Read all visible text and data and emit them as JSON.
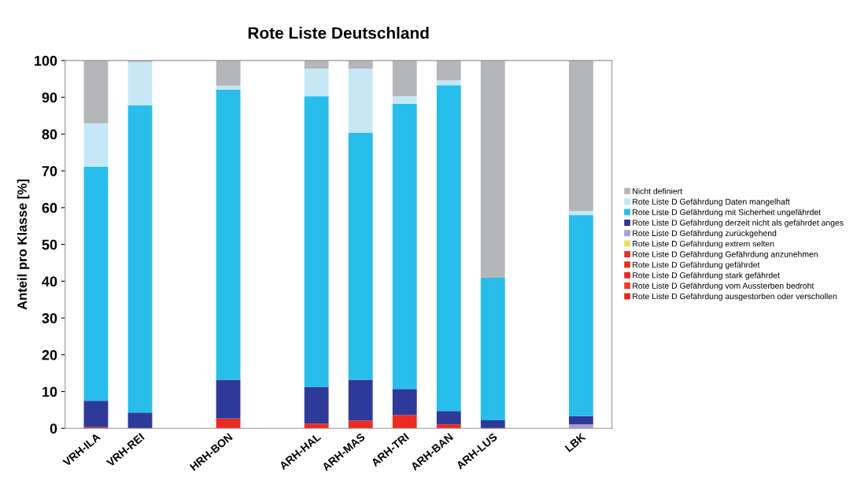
{
  "chart_data": {
    "type": "bar",
    "stacked": true,
    "title": "Rote Liste Deutschland",
    "ylabel": "Anteil pro Klasse [%]",
    "categories": [
      "VRH-ILA",
      "VRH-REI",
      null,
      "HRH-BON",
      null,
      "ARH-HAL",
      "ARH-MAS",
      "ARH-TRI",
      "ARH-BAN",
      "ARH-LUS",
      null,
      "LBK"
    ],
    "ylim": [
      0,
      100
    ],
    "yticks": [
      0,
      10,
      20,
      30,
      40,
      50,
      60,
      70,
      80,
      90,
      100
    ],
    "grid": false,
    "legend": "right",
    "series": [
      {
        "name": "Rote Liste D Gefährdung ausgestorben oder verschollen",
        "color": "#e8261c",
        "values": [
          0.3,
          null,
          null,
          null,
          null,
          null,
          null,
          null,
          null,
          null,
          null,
          null
        ]
      },
      {
        "name": "Rote Liste D Gefährdung vom Aussterben bedroht",
        "color": "#ee3a1e",
        "values": [
          null,
          null,
          null,
          null,
          null,
          null,
          null,
          null,
          null,
          null,
          null,
          null
        ]
      },
      {
        "name": "Rote Liste D Gefährdung stark gefährdet",
        "color": "#e62a24",
        "values": [
          null,
          null,
          null,
          null,
          null,
          null,
          null,
          null,
          null,
          null,
          null,
          null
        ]
      },
      {
        "name": "Rote Liste D Gefährdung gefährdet",
        "color": "#ec2b22",
        "values": [
          null,
          null,
          null,
          2.7,
          null,
          1.3,
          2.1,
          3.6,
          1.1,
          null,
          null,
          null
        ]
      },
      {
        "name": "Rote Liste D Gefährdung Gefährdung anzunehmen",
        "color": "#e83020",
        "values": [
          null,
          null,
          null,
          null,
          null,
          null,
          null,
          null,
          null,
          null,
          null,
          null
        ]
      },
      {
        "name": "Rote Liste D Gefährdung extrem selten",
        "color": "#e8e060",
        "values": [
          null,
          null,
          null,
          null,
          null,
          null,
          null,
          null,
          null,
          null,
          null,
          null
        ]
      },
      {
        "name": "Rote Liste D Gefährdung zurückgehend",
        "color": "#a9a0d0",
        "values": [
          null,
          null,
          null,
          null,
          null,
          null,
          null,
          null,
          null,
          null,
          null,
          1.1
        ]
      },
      {
        "name": "Rote Liste D Gefährdung derzeit nicht als gefährdet anges",
        "color": "#2e3a9a",
        "values": [
          7.2,
          4.3,
          null,
          10.5,
          null,
          10.0,
          11.1,
          7.1,
          3.6,
          2.2,
          null,
          2.2
        ]
      },
      {
        "name": "Rote Liste D Gefährdung mit Sicherheit ungefährdet",
        "color": "#29bdeb",
        "values": [
          63.6,
          83.5,
          null,
          78.9,
          null,
          79.0,
          67.2,
          77.5,
          88.6,
          38.7,
          null,
          54.7
        ]
      },
      {
        "name": "Rote Liste D Gefährdung Daten mangelhaft",
        "color": "#c6e8f6",
        "values": [
          11.8,
          11.8,
          null,
          1.1,
          null,
          7.5,
          17.4,
          2.1,
          1.3,
          null,
          null,
          1.1
        ]
      },
      {
        "name": "Nicht definiert",
        "color": "#b4b6ba",
        "values": [
          17.1,
          0.4,
          null,
          6.8,
          null,
          2.2,
          2.2,
          9.7,
          5.4,
          59.1,
          null,
          40.9
        ]
      }
    ]
  }
}
